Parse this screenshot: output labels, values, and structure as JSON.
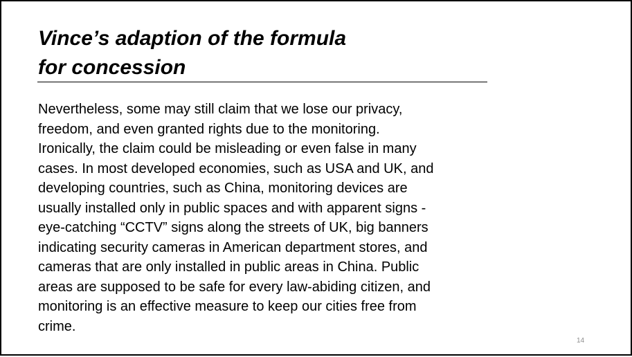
{
  "slide": {
    "title_lines": [
      "Vince’s adaption of the formula",
      "for concession"
    ],
    "body_lines": [
      "Nevertheless, some may still claim that we lose our privacy,",
      "freedom, and even granted rights due to the monitoring.",
      "Ironically, the claim could be misleading or even false in many",
      "cases. In most developed economies, such as USA and UK, and",
      "developing countries, such as China, monitoring devices are",
      "usually installed only in public spaces and with apparent signs -",
      "eye-catching “CCTV” signs along the streets of UK, big banners",
      "indicating security cameras in American department stores, and",
      "cameras that are only installed in public areas in China. Public",
      "areas are supposed to be safe for every law-abiding citizen, and",
      "monitoring is an effective measure to keep our cities free from",
      "crime."
    ],
    "page_number": "14",
    "colors": {
      "text": "#000000",
      "page_number": "#8c8c8c",
      "background": "#ffffff",
      "border": "#000000"
    }
  }
}
